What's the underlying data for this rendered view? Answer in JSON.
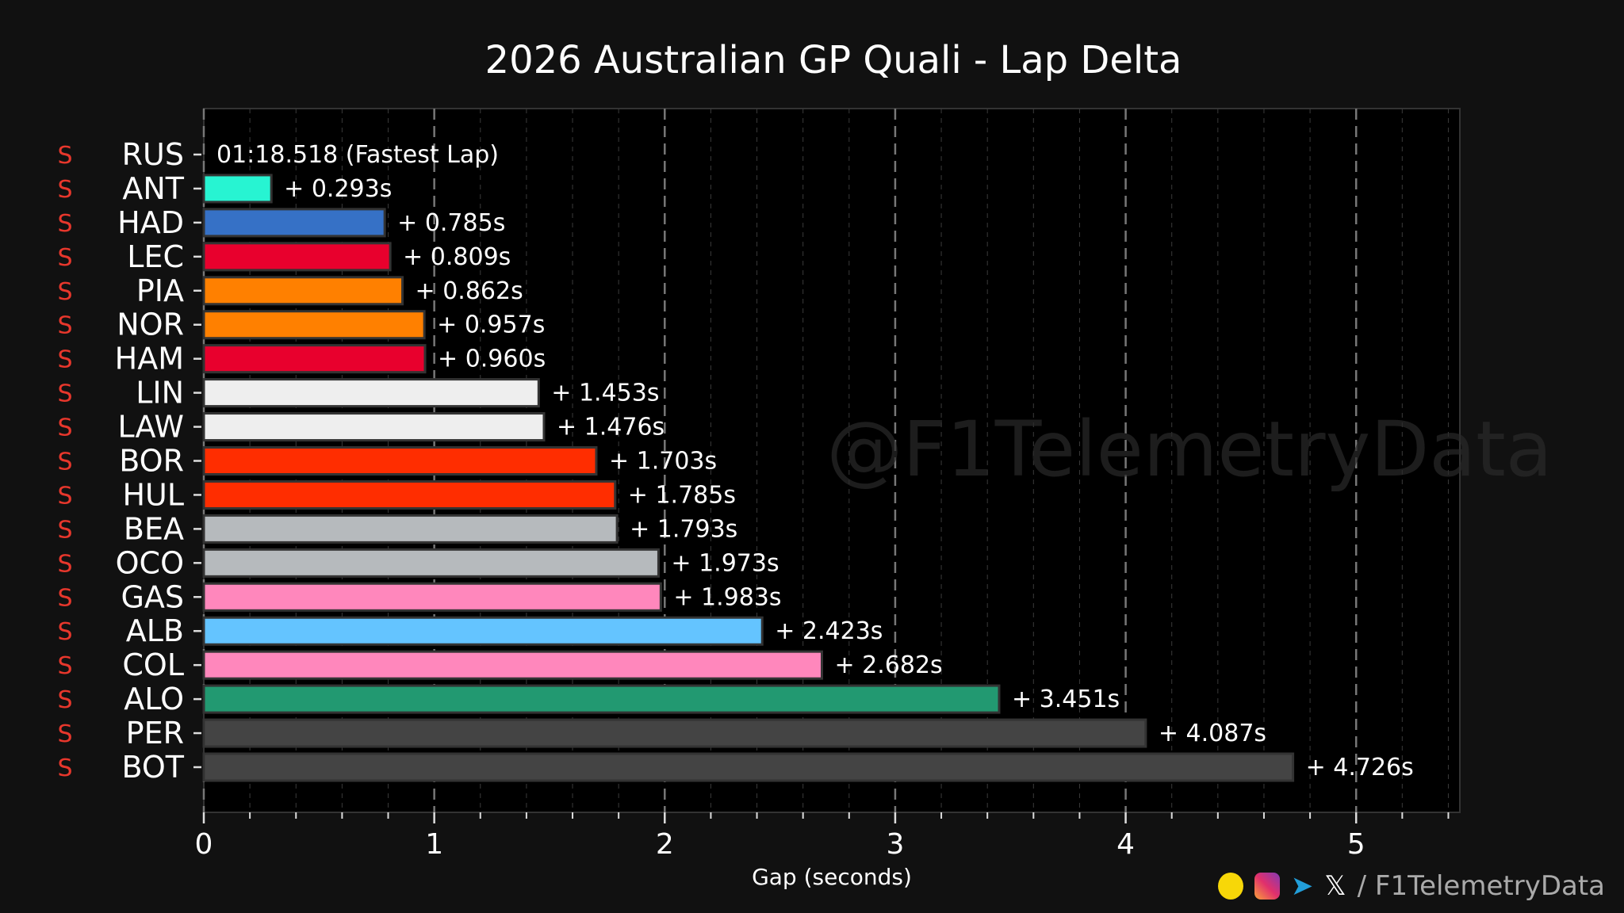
{
  "chart_data": {
    "type": "bar",
    "orientation": "horizontal",
    "title": "2026 Australian GP Quali - Lap Delta",
    "xlabel": "Gap (seconds)",
    "ylabel": "",
    "xlim": [
      0,
      5.45
    ],
    "xticks": [
      "0",
      "1",
      "2",
      "3",
      "4",
      "5"
    ],
    "grid": true,
    "fastest_lap_label": "01:18.518 (Fastest Lap)",
    "tyre_label": "S",
    "tyre_color": "#e8372c",
    "watermark": "@F1TelemetryData",
    "categories": [
      "RUS",
      "ANT",
      "HAD",
      "LEC",
      "PIA",
      "NOR",
      "HAM",
      "LIN",
      "LAW",
      "BOR",
      "HUL",
      "BEA",
      "OCO",
      "GAS",
      "ALB",
      "COL",
      "ALO",
      "PER",
      "BOT"
    ],
    "values": [
      0,
      0.293,
      0.785,
      0.809,
      0.862,
      0.957,
      0.96,
      1.453,
      1.476,
      1.703,
      1.785,
      1.793,
      1.973,
      1.983,
      2.423,
      2.682,
      3.451,
      4.087,
      4.726
    ],
    "data_labels": [
      "01:18.518 (Fastest Lap)",
      "+ 0.293s",
      "+ 0.785s",
      "+ 0.809s",
      "+ 0.862s",
      "+ 0.957s",
      "+ 0.960s",
      "+ 1.453s",
      "+ 1.476s",
      "+ 1.703s",
      "+ 1.785s",
      "+ 1.793s",
      "+ 1.973s",
      "+ 1.983s",
      "+ 2.423s",
      "+ 2.682s",
      "+ 3.451s",
      "+ 4.087s",
      "+ 4.726s"
    ],
    "colors": [
      "#27f4d2",
      "#27f4d2",
      "#3671c6",
      "#e8002d",
      "#ff8000",
      "#ff8000",
      "#e8002d",
      "#eeeeee",
      "#eeeeee",
      "#ff2d00",
      "#ff2d00",
      "#b6babd",
      "#b6babd",
      "#ff87bc",
      "#64c4ff",
      "#ff87bc",
      "#229971",
      "#444444",
      "#444444"
    ]
  },
  "footer": {
    "handle": "/ F1TelemetryData",
    "icons": [
      "buymeacoffee-icon",
      "instagram-icon",
      "telegram-icon",
      "x-icon"
    ]
  }
}
